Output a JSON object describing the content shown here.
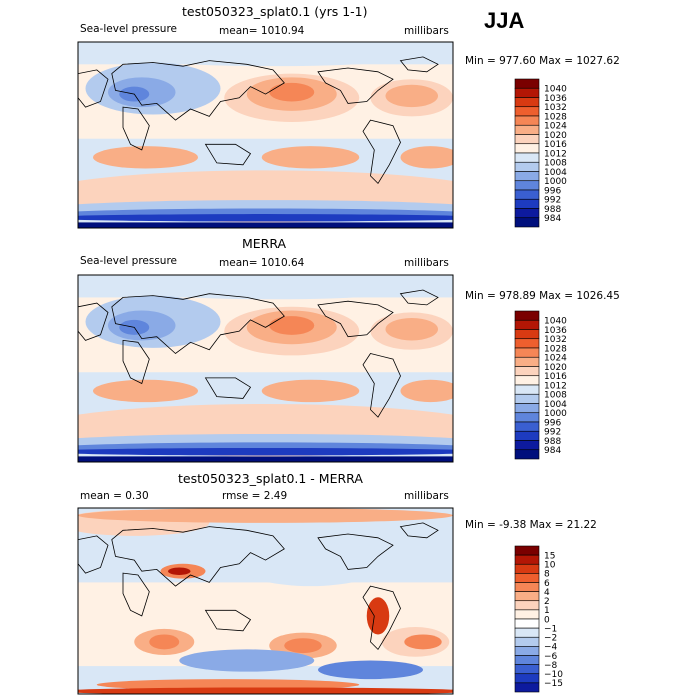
{
  "season": "JJA",
  "panels": [
    {
      "title": "test050323_splat0.1 (yrs 1-1)",
      "left_label": "Sea-level pressure",
      "center_label": "mean= 1010.94",
      "right_label": "millibars",
      "minmax": "Min = 977.60 Max = 1027.62"
    },
    {
      "title": "MERRA",
      "left_label": "Sea-level pressure",
      "center_label": "mean= 1010.64",
      "right_label": "millibars",
      "minmax": "Min = 978.89 Max = 1026.45"
    },
    {
      "title": "test050323_splat0.1 - MERRA",
      "left_label": "mean =    0.30",
      "center_label": "rmse =    2.49",
      "right_label": "millibars",
      "minmax": "Min =  -9.38 Max =  21.22"
    }
  ],
  "chart_data": [
    {
      "type": "heatmap",
      "title": "test050323_splat0.1 (yrs 1-1)",
      "variable": "Sea-level pressure",
      "units": "millibars",
      "mean": 1010.94,
      "min": 977.6,
      "max": 1027.62,
      "colorbar_levels": [
        "1040",
        "1036",
        "1032",
        "1028",
        "1024",
        "1020",
        "1016",
        "1012",
        "1008",
        "1004",
        "1000",
        "996",
        "992",
        "988",
        "984"
      ],
      "colors": [
        "#7a0000",
        "#b31605",
        "#d83a12",
        "#ee5f2e",
        "#f58656",
        "#f9ae86",
        "#fcd3bd",
        "#fff1e4",
        "#d9e7f6",
        "#b3cbee",
        "#8aaae6",
        "#5f85dc",
        "#3a5fd1",
        "#1d3bc0",
        "#0d1a9e",
        "#000f7c"
      ]
    },
    {
      "type": "heatmap",
      "title": "MERRA",
      "variable": "Sea-level pressure",
      "units": "millibars",
      "mean": 1010.64,
      "min": 978.89,
      "max": 1026.45,
      "colorbar_levels": [
        "1040",
        "1036",
        "1032",
        "1028",
        "1024",
        "1020",
        "1016",
        "1012",
        "1008",
        "1004",
        "1000",
        "996",
        "992",
        "988",
        "984"
      ],
      "colors": [
        "#7a0000",
        "#b31605",
        "#d83a12",
        "#ee5f2e",
        "#f58656",
        "#f9ae86",
        "#fcd3bd",
        "#fff1e4",
        "#d9e7f6",
        "#b3cbee",
        "#8aaae6",
        "#5f85dc",
        "#3a5fd1",
        "#1d3bc0",
        "#0d1a9e",
        "#000f7c"
      ]
    },
    {
      "type": "heatmap",
      "title": "test050323_splat0.1 - MERRA",
      "units": "millibars",
      "mean": 0.3,
      "rmse": 2.49,
      "min": -9.38,
      "max": 21.22,
      "colorbar_levels": [
        "15",
        "10",
        "8",
        "6",
        "4",
        "2",
        "1",
        "0",
        "−1",
        "−2",
        "−4",
        "−6",
        "−8",
        "−10",
        "−15"
      ],
      "colors": [
        "#7a0000",
        "#b31605",
        "#d83a12",
        "#ee5f2e",
        "#f58656",
        "#f9ae86",
        "#fcd3bd",
        "#fff1e4",
        "#ffffff",
        "#d9e7f6",
        "#b3cbee",
        "#8aaae6",
        "#5f85dc",
        "#3a5fd1",
        "#1d3bc0",
        "#0d1a9e"
      ]
    }
  ]
}
